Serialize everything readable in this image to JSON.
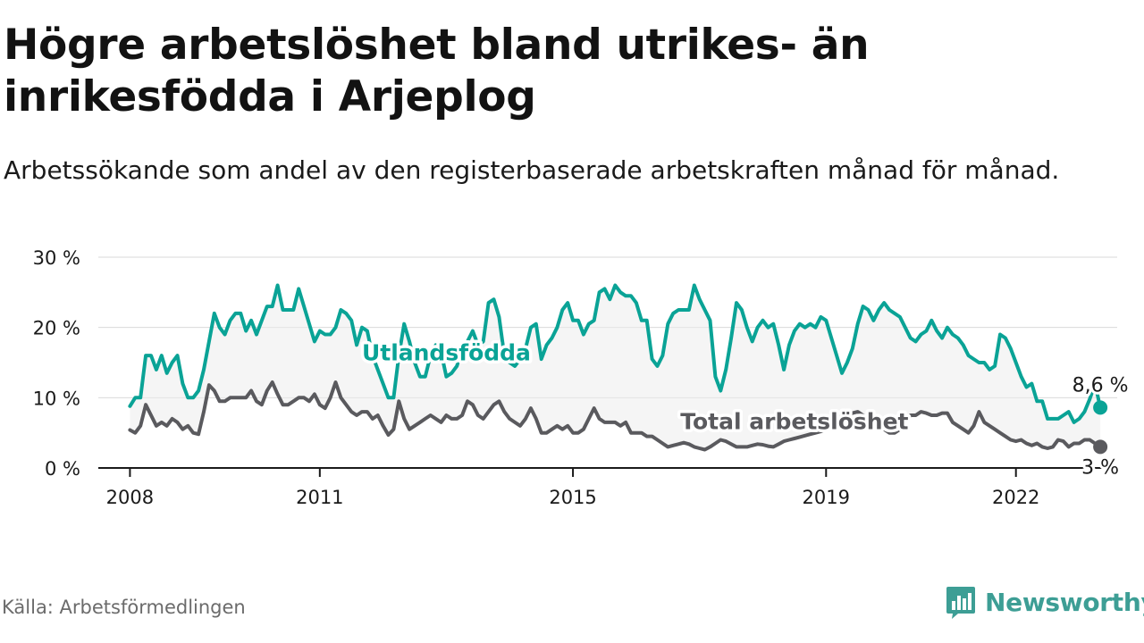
{
  "title": "Högre arbetslöshet bland utrikes- än inrikesfödda i Arjeplog",
  "subtitle": "Arbetssökande som andel av den registerbaserade arbetskraften månad för månad.",
  "source": "Källa: Arbetsförmedlingen",
  "brand": "Newsworthy",
  "colors": {
    "foreign": "#0aa396",
    "total": "#5a5a5e",
    "band": "#ececec",
    "axis": "#1a1a1a",
    "grid": "#d9d9d9"
  },
  "chart_data": {
    "type": "line",
    "x_start": 2008.0,
    "step_months": 1,
    "xlim": [
      2007.5,
      2023.6
    ],
    "ylim": [
      0,
      30
    ],
    "y_ticks": [
      0,
      10,
      20,
      30
    ],
    "y_tick_labels": [
      "0 %",
      "10 %",
      "20 %",
      "30 %"
    ],
    "x_ticks": [
      2008,
      2011,
      2015,
      2019,
      2022
    ],
    "x_tick_labels": [
      "2008",
      "2011",
      "2015",
      "2019",
      "2022"
    ],
    "series": [
      {
        "name": "Utlandsfödda",
        "key": "foreign",
        "label_pos": {
          "x": 2013.0,
          "y": 15.3
        },
        "end_label": "8,6 %",
        "values": [
          8.8,
          10,
          10,
          16,
          16,
          14,
          16,
          13.5,
          15,
          16,
          12,
          10,
          10,
          11,
          14,
          18,
          22,
          20,
          19,
          21,
          22,
          22,
          19.5,
          21,
          19,
          21,
          23,
          23,
          26,
          22.5,
          22.5,
          22.5,
          25.5,
          23,
          20.5,
          18,
          19.5,
          19,
          19,
          20,
          22.5,
          22,
          21,
          17.5,
          20,
          19.5,
          16,
          14,
          12,
          10,
          10,
          16,
          20.5,
          18,
          15,
          13,
          13,
          16,
          17.5,
          16.5,
          13,
          13.5,
          14.5,
          17,
          18,
          19.5,
          17.5,
          18,
          23.5,
          24,
          21.5,
          16,
          15,
          14.5,
          15.5,
          17,
          20,
          20.5,
          15.5,
          17.5,
          18.5,
          20,
          22.5,
          23.5,
          21,
          21,
          19,
          20.5,
          21,
          25,
          25.5,
          24,
          26,
          25,
          24.5,
          24.5,
          23.5,
          21,
          21,
          15.5,
          14.5,
          16,
          20.5,
          22,
          22.5,
          22.5,
          22.5,
          26,
          24,
          22.5,
          21,
          13,
          11,
          14,
          18.5,
          23.5,
          22.5,
          20,
          18,
          20,
          21,
          20,
          20.5,
          17.5,
          14,
          17.5,
          19.5,
          20.5,
          20,
          20.5,
          20,
          21.5,
          21,
          18.5,
          16,
          13.5,
          15,
          17,
          20.5,
          23,
          22.5,
          21,
          22.5,
          23.5,
          22.5,
          22,
          21.5,
          20,
          18.5,
          18,
          19,
          19.5,
          21,
          19.5,
          18.5,
          20,
          19,
          18.5,
          17.5,
          16,
          15.5,
          15,
          15,
          14,
          14.5,
          19,
          18.5,
          17,
          15,
          13,
          11.5,
          12,
          9.5,
          9.5,
          7,
          7,
          7,
          7.5,
          8,
          6.5,
          7,
          8,
          9.8,
          12,
          8.6
        ]
      },
      {
        "name": "Total arbetslöshet",
        "key": "total",
        "label_pos": {
          "x": 2018.5,
          "y": 5.5
        },
        "end_label": "3 %",
        "values": [
          5.4,
          5,
          6,
          9,
          7.5,
          6,
          6.5,
          6,
          7,
          6.5,
          5.5,
          6,
          5,
          4.8,
          8,
          11.8,
          11,
          9.5,
          9.5,
          10,
          10,
          10,
          10,
          11,
          9.5,
          9,
          11,
          12.2,
          10.5,
          9,
          9,
          9.5,
          10,
          10,
          9.5,
          10.5,
          9,
          8.5,
          10,
          12.2,
          10,
          9,
          8,
          7.5,
          8,
          8,
          7,
          7.5,
          6,
          4.7,
          5.5,
          9.5,
          7,
          5.5,
          6,
          6.5,
          7,
          7.5,
          7,
          6.5,
          7.5,
          7,
          7,
          7.5,
          9.5,
          9,
          7.5,
          7,
          8,
          9,
          9.5,
          8,
          7,
          6.5,
          6,
          7,
          8.5,
          7,
          5,
          5,
          5.5,
          6,
          5.5,
          6,
          5,
          5,
          5.5,
          7,
          8.5,
          7,
          6.5,
          6.5,
          6.5,
          6,
          6.5,
          5,
          5,
          5,
          4.5,
          4.5,
          4,
          3.5,
          3,
          3.2,
          3.4,
          3.6,
          3.4,
          3,
          2.8,
          2.6,
          3,
          3.5,
          4,
          3.8,
          3.4,
          3,
          3,
          3,
          3.2,
          3.4,
          3.3,
          3.1,
          3,
          3.4,
          3.8,
          4,
          4.2,
          4.4,
          4.6,
          4.8,
          5,
          5.2,
          5.5,
          6,
          7,
          7.5,
          7.5,
          7.8,
          8,
          7.5,
          7,
          6.5,
          6,
          5.5,
          5,
          5,
          5.5,
          6.5,
          7.5,
          7.5,
          8,
          7.8,
          7.5,
          7.5,
          7.8,
          7.8,
          6.5,
          6,
          5.5,
          5,
          6,
          8,
          6.5,
          6,
          5.5,
          5,
          4.5,
          4,
          3.8,
          4,
          3.5,
          3.2,
          3.5,
          3,
          2.8,
          3,
          4,
          3.8,
          3,
          3.5,
          3.5,
          4,
          4,
          3.5,
          3
        ]
      }
    ]
  }
}
